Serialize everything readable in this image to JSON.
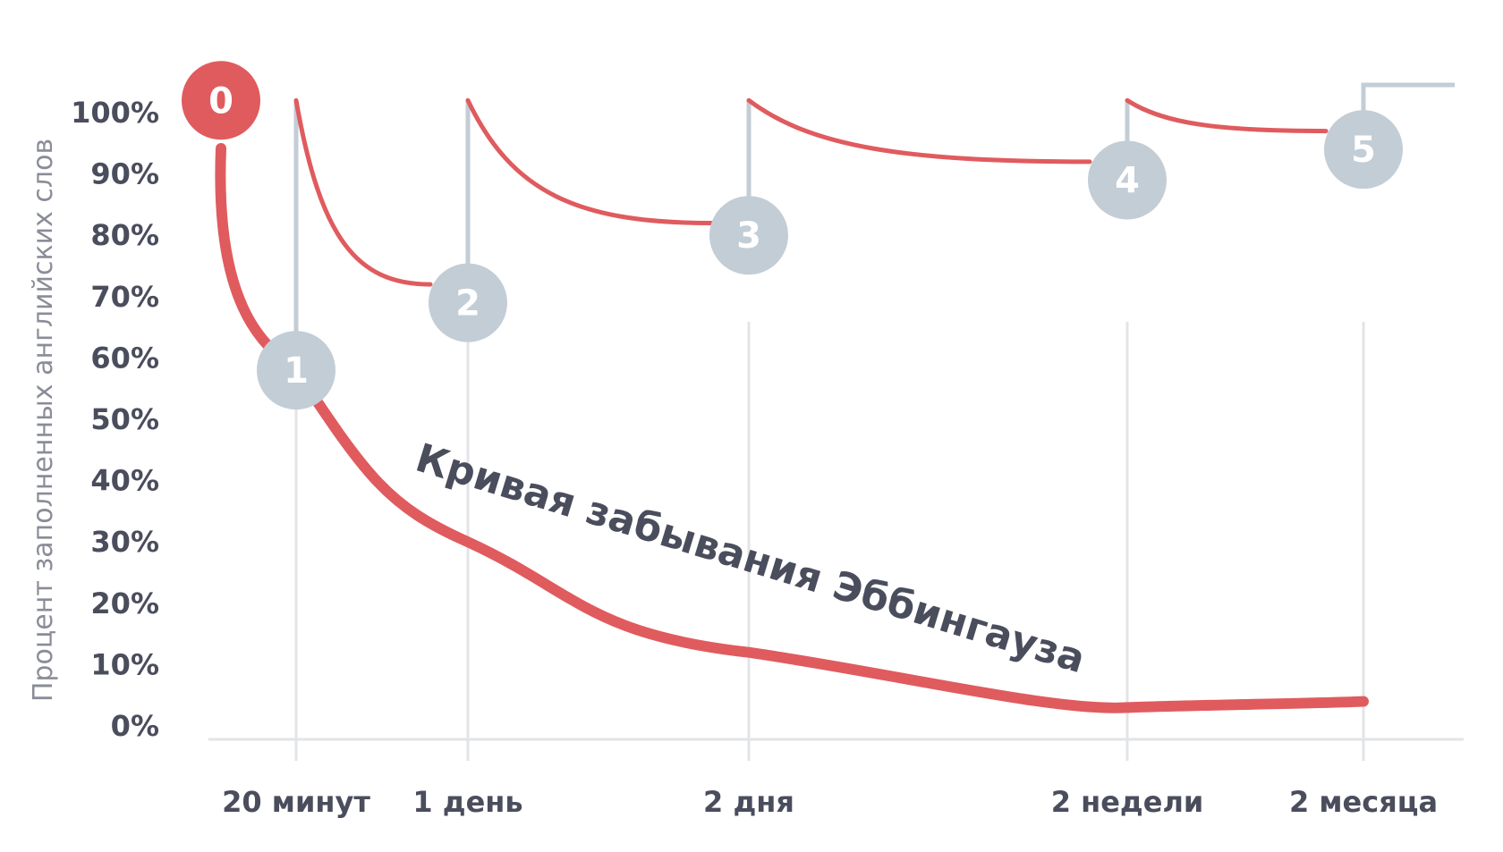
{
  "chart_data": {
    "type": "line",
    "title": "",
    "curve_label": "Кривая забывания Эббингауза",
    "ylabel": "Процент заполненных английских слов",
    "xlabel": "",
    "yticks": [
      "0%",
      "10%",
      "20%",
      "30%",
      "40%",
      "50%",
      "60%",
      "70%",
      "80%",
      "90%",
      "100%"
    ],
    "ylim": [
      0,
      100
    ],
    "categories": [
      "20 минут",
      "1 день",
      "2 дня",
      "2 недели",
      "2 месяца"
    ],
    "forgetting_curve": {
      "color": "#e05b5e",
      "points": [
        {
          "x": "start",
          "y": 100
        },
        {
          "x": "20 минут",
          "y": 58
        },
        {
          "x": "1 день",
          "y": 30
        },
        {
          "x": "2 дня",
          "y": 12
        },
        {
          "x": "2 недели",
          "y": 3
        },
        {
          "x": "2 месяца",
          "y": 4
        },
        {
          "x": "end",
          "y": 5
        }
      ]
    },
    "review_curves": [
      {
        "from": "20 минут",
        "to": "1 день",
        "start_y": 102,
        "end_y": 72
      },
      {
        "from": "1 день",
        "to": "2 дня",
        "start_y": 102,
        "end_y": 82
      },
      {
        "from": "2 дня",
        "to": "2 недели",
        "start_y": 102,
        "end_y": 92
      },
      {
        "from": "2 недели",
        "to": "2 месяца",
        "start_y": 102,
        "end_y": 97
      }
    ],
    "repetitions": [
      {
        "label": "0",
        "x": "start",
        "y": 102,
        "color": "#e05b5e"
      },
      {
        "label": "1",
        "x": "20 минут",
        "y": 58,
        "color": "#c3cdd5"
      },
      {
        "label": "2",
        "x": "1 день",
        "y": 69,
        "color": "#c3cdd5"
      },
      {
        "label": "3",
        "x": "2 дня",
        "y": 80,
        "color": "#c3cdd5"
      },
      {
        "label": "4",
        "x": "2 недели",
        "y": 89,
        "color": "#c3cdd5"
      },
      {
        "label": "5",
        "x": "2 месяца",
        "y": 94,
        "color": "#c3cdd5"
      }
    ],
    "grid": {
      "vertical": true,
      "horizontal": false
    },
    "colors": {
      "accent": "#e05b5e",
      "marker": "#c3cdd5",
      "grid": "#e2e4e7",
      "text": "#4a4d5c"
    }
  }
}
